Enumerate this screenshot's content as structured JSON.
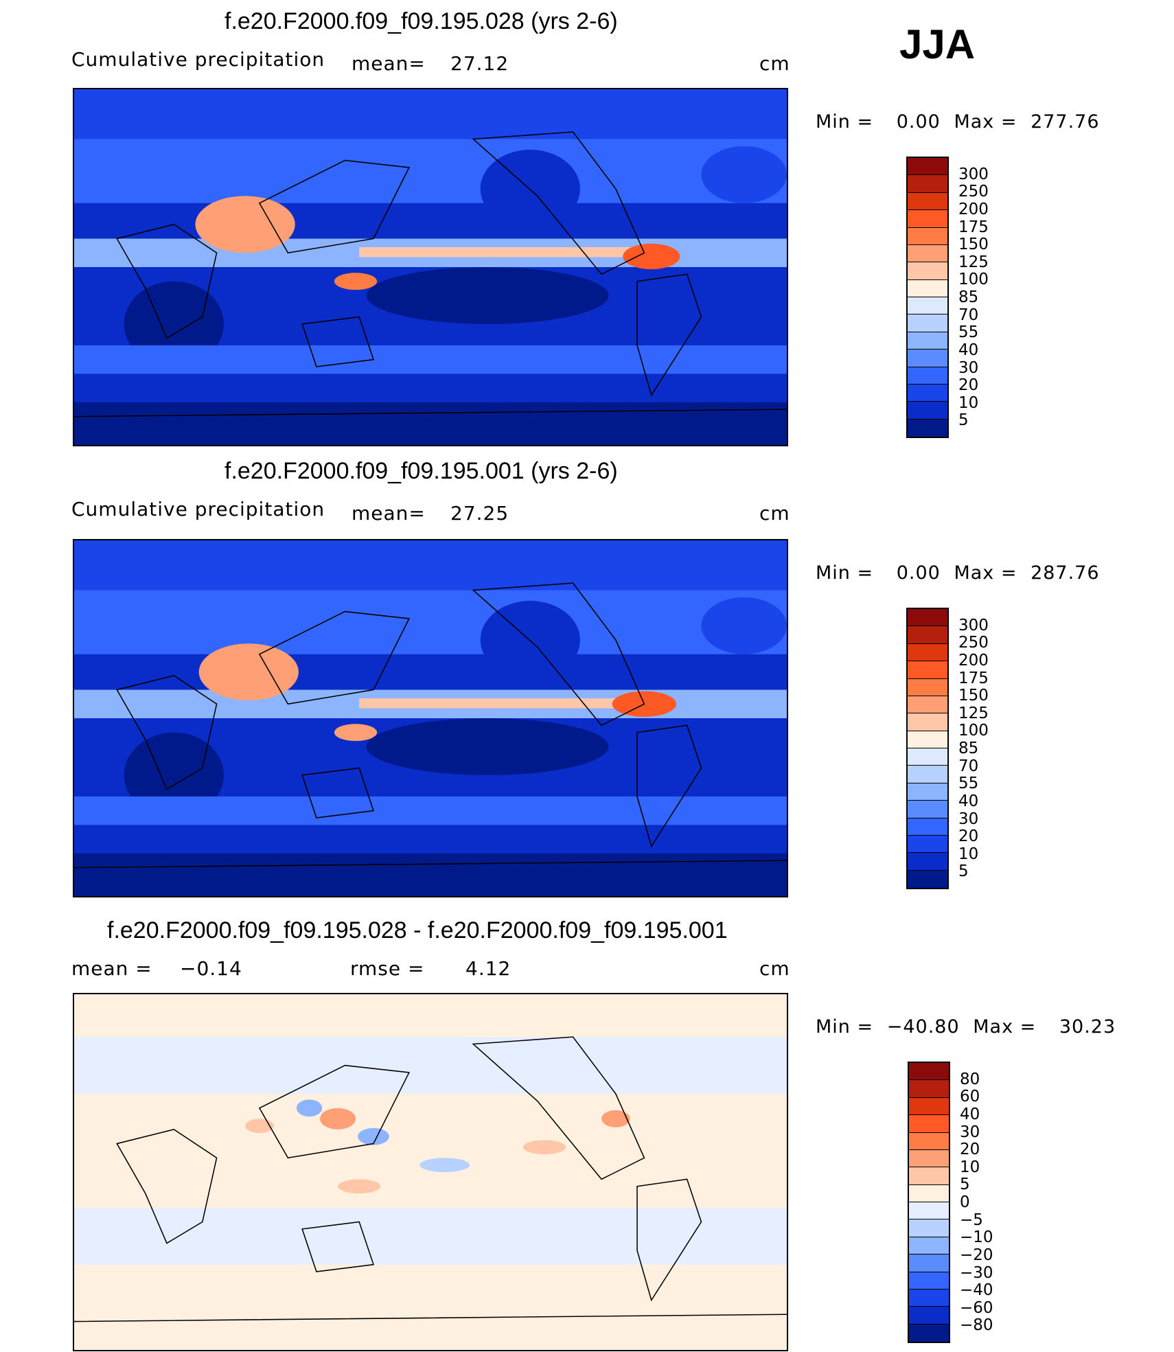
{
  "season_label": "JJA",
  "units": "cm",
  "panels": [
    {
      "title": "f.e20.F2000.f09_f09.195.028 (yrs 2-6)",
      "subtitle_left": "Cumulative precipitation",
      "stat_label": "mean=",
      "stat_value": "27.12",
      "units": "cm",
      "min_label": "Min  =",
      "min_value": "0.00",
      "max_label": "Max  =",
      "max_value": "277.76"
    },
    {
      "title": "f.e20.F2000.f09_f09.195.001 (yrs 2-6)",
      "subtitle_left": "Cumulative precipitation",
      "stat_label": "mean=",
      "stat_value": "27.25",
      "units": "cm",
      "min_label": "Min  =",
      "min_value": "0.00",
      "max_label": "Max  =",
      "max_value": "287.76"
    },
    {
      "title": "f.e20.F2000.f09_f09.195.028 - f.e20.F2000.f09_f09.195.001",
      "mean_label": "mean  =",
      "mean_value": "−0.14",
      "rmse_label": "rmse  =",
      "rmse_value": "4.12",
      "units": "cm",
      "min_label": "Min  =",
      "min_value": "−40.80",
      "max_label": "Max  =",
      "max_value": "30.23"
    }
  ],
  "chart_data": [
    {
      "type": "heatmap",
      "title": "f.e20.F2000.f09_f09.195.028 (yrs 2-6)",
      "variable": "Cumulative precipitation",
      "mean": 27.12,
      "min": 0.0,
      "max": 277.76,
      "units": "cm",
      "colorbar_levels": [
        "300",
        "250",
        "200",
        "175",
        "150",
        "125",
        "100",
        "85",
        "70",
        "55",
        "40",
        "30",
        "20",
        "10",
        "5"
      ],
      "colorbar_colors": [
        "#8c0a0a",
        "#b5200e",
        "#e0380e",
        "#ff5a26",
        "#ff7c45",
        "#ff9f75",
        "#ffc6a8",
        "#fff0e0",
        "#dce9ff",
        "#b8d2ff",
        "#8cb4ff",
        "#5a8cff",
        "#3366ff",
        "#1a45eb",
        "#0a2cc8",
        "#001a8c"
      ]
    },
    {
      "type": "heatmap",
      "title": "f.e20.F2000.f09_f09.195.001 (yrs 2-6)",
      "variable": "Cumulative precipitation",
      "mean": 27.25,
      "min": 0.0,
      "max": 287.76,
      "units": "cm",
      "colorbar_levels": [
        "300",
        "250",
        "200",
        "175",
        "150",
        "125",
        "100",
        "85",
        "70",
        "55",
        "40",
        "30",
        "20",
        "10",
        "5"
      ],
      "colorbar_colors": [
        "#8c0a0a",
        "#b5200e",
        "#e0380e",
        "#ff5a26",
        "#ff7c45",
        "#ff9f75",
        "#ffc6a8",
        "#fff0e0",
        "#dce9ff",
        "#b8d2ff",
        "#8cb4ff",
        "#5a8cff",
        "#3366ff",
        "#1a45eb",
        "#0a2cc8",
        "#001a8c"
      ]
    },
    {
      "type": "heatmap",
      "title": "f.e20.F2000.f09_f09.195.028 - f.e20.F2000.f09_f09.195.001",
      "variable": "difference",
      "mean": -0.14,
      "rmse": 4.12,
      "min": -40.8,
      "max": 30.23,
      "units": "cm",
      "colorbar_levels": [
        "80",
        "60",
        "40",
        "30",
        "20",
        "10",
        "5",
        "0",
        "−5",
        "−10",
        "−20",
        "−30",
        "−40",
        "−60",
        "−80"
      ],
      "colorbar_colors": [
        "#8c0a0a",
        "#b5200e",
        "#e0380e",
        "#ff5a26",
        "#ff7c45",
        "#ff9f75",
        "#ffc6a8",
        "#fff0e0",
        "#e6efff",
        "#b8d2ff",
        "#8cb4ff",
        "#5a8cff",
        "#3366ff",
        "#1a45eb",
        "#0a2cc8",
        "#001a8c"
      ]
    }
  ]
}
